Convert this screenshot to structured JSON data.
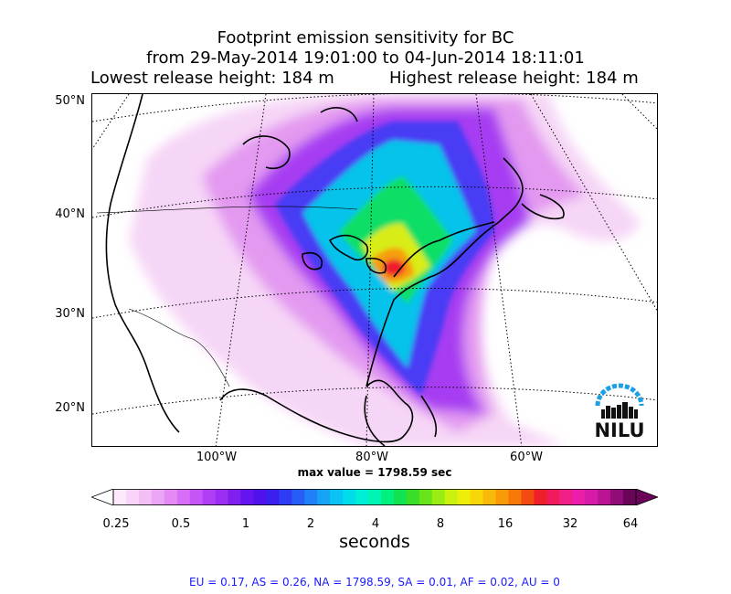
{
  "title": {
    "line1": "Footprint emission sensitivity for BC",
    "line2": "from 29-May-2014 19:01:00 to 04-Jun-2014 18:11:01",
    "lowest": "Lowest release height: 184 m",
    "highest": "Highest release height: 184 m"
  },
  "lat_labels": [
    "50°N",
    "40°N",
    "30°N",
    "20°N"
  ],
  "lon_labels": [
    "100°W",
    "80°W",
    "60°W"
  ],
  "max_value": "max value = 1798.59 sec",
  "colorbar": {
    "ticks": [
      "0.25",
      "0.5",
      "1",
      "2",
      "4",
      "8",
      "16",
      "32",
      "64"
    ],
    "unit": "seconds",
    "colors": [
      "#fde9fb",
      "#f8d4f8",
      "#f3bdf5",
      "#eca4f4",
      "#e48af4",
      "#d86ef5",
      "#c655f6",
      "#b03ef5",
      "#9a2ef2",
      "#7f1ff0",
      "#6614ef",
      "#4f12ea",
      "#3a20f0",
      "#2f3cf5",
      "#285cf7",
      "#1f80f7",
      "#16a2f5",
      "#0bc3f2",
      "#00dcea",
      "#00eed6",
      "#00f5b4",
      "#00f080",
      "#10e34f",
      "#38de28",
      "#6ae41a",
      "#9aed12",
      "#c9f20e",
      "#eeee0a",
      "#f8d608",
      "#f9b908",
      "#f89a08",
      "#f67808",
      "#f24a10",
      "#ee1f2a",
      "#f01a5c",
      "#f01f88",
      "#ea1ea8",
      "#d81aa8",
      "#b81494",
      "#900c78",
      "#6a0459"
    ]
  },
  "footer": "EU = 0.17,  AS = 0.26,  NA = 1798.59,  SA = 0.01,  AF = 0.02,  AU = 0",
  "logo_text": "NILU",
  "logo_color": "#1aa0e6"
}
